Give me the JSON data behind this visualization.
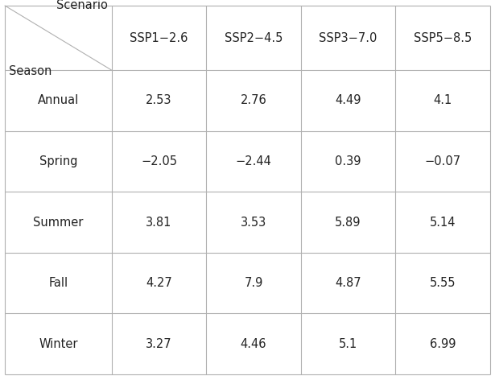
{
  "col_headers": [
    "SSP1−2.6",
    "SSP2−4.5",
    "SSP3−7.0",
    "SSP5−8.5"
  ],
  "row_headers": [
    "Annual",
    "Spring",
    "Summer",
    "Fall",
    "Winter"
  ],
  "values": [
    [
      "2.53",
      "2.76",
      "4.49",
      "4.1"
    ],
    [
      "−2.05",
      "−2.44",
      "0.39",
      "−0.07"
    ],
    [
      "3.81",
      "3.53",
      "5.89",
      "5.14"
    ],
    [
      "4.27",
      "7.9",
      "4.87",
      "5.55"
    ],
    [
      "3.27",
      "4.46",
      "5.1",
      "6.99"
    ]
  ],
  "corner_label_top": "Scenario",
  "corner_label_bottom": "Season",
  "bg_color": "#ffffff",
  "line_color": "#b0b0b0",
  "text_color": "#222222",
  "header_fontsize": 10.5,
  "cell_fontsize": 10.5,
  "fig_width": 6.15,
  "fig_height": 4.72
}
